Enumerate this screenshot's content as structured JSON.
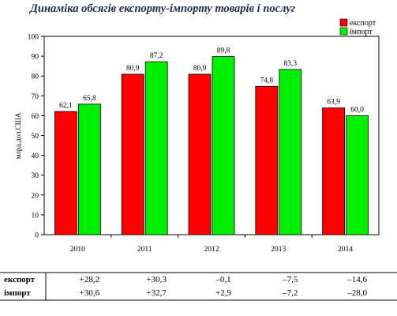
{
  "chart_data": {
    "type": "bar",
    "title": "Динаміка обсягів експорту-імпорту товарів і послуг",
    "ylabel": "млрд.дол.США",
    "xlabel": "",
    "ylim": [
      0,
      100
    ],
    "yticks": [
      0,
      10,
      20,
      30,
      40,
      50,
      60,
      70,
      80,
      90,
      100
    ],
    "categories": [
      "2010",
      "2011",
      "2012",
      "2013",
      "2014"
    ],
    "series": [
      {
        "name": "експорт",
        "color": "#ff0000",
        "values": [
          62.1,
          80.9,
          80.9,
          74.8,
          63.9
        ],
        "labels": [
          "62,1",
          "80,9",
          "80,9",
          "74,8",
          "63,9"
        ]
      },
      {
        "name": "імпорт",
        "color": "#00ee00",
        "values": [
          65.8,
          87.2,
          89.8,
          83.3,
          60.0
        ],
        "labels": [
          "65,8",
          "87,2",
          "89,8",
          "83,3",
          "60,0"
        ]
      }
    ],
    "legend_position": "top-right",
    "grid": false
  },
  "table": {
    "rows": [
      {
        "label": "експорт",
        "values": [
          "+28,2",
          "+30,3",
          "–0,1",
          "–7,5",
          "–14,6"
        ]
      },
      {
        "label": "імпорт",
        "values": [
          "+30,6",
          "+32,7",
          "+2,9",
          "–7,2",
          "–28,0"
        ]
      }
    ]
  }
}
